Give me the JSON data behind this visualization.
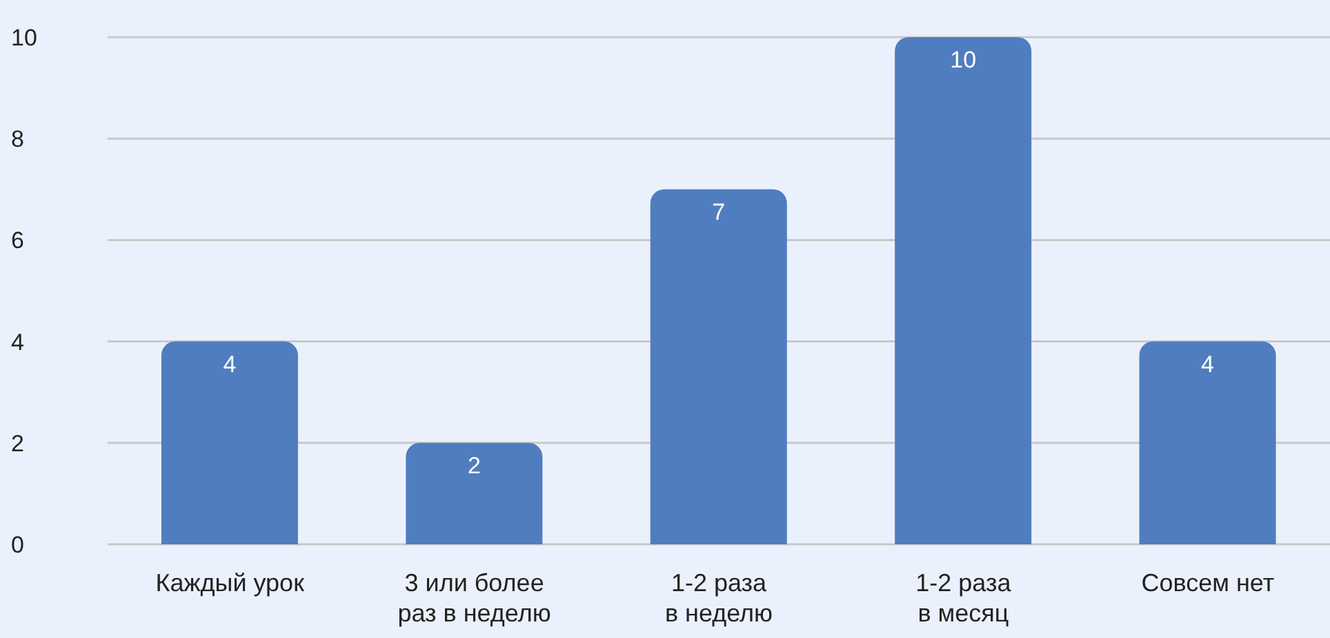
{
  "chart_data": {
    "type": "bar",
    "categories": [
      "Каждый урок",
      "3 или более\nраз в неделю",
      "1-2 раза\nв неделю",
      "1-2 раза\nв месяц",
      "Совсем нет"
    ],
    "values": [
      4,
      2,
      7,
      10,
      4
    ],
    "color": "#4f7dbf",
    "ylim": [
      0,
      10
    ],
    "yticks": [
      0,
      2,
      4,
      6,
      8,
      10
    ],
    "grid": "y",
    "data_labels": true
  }
}
